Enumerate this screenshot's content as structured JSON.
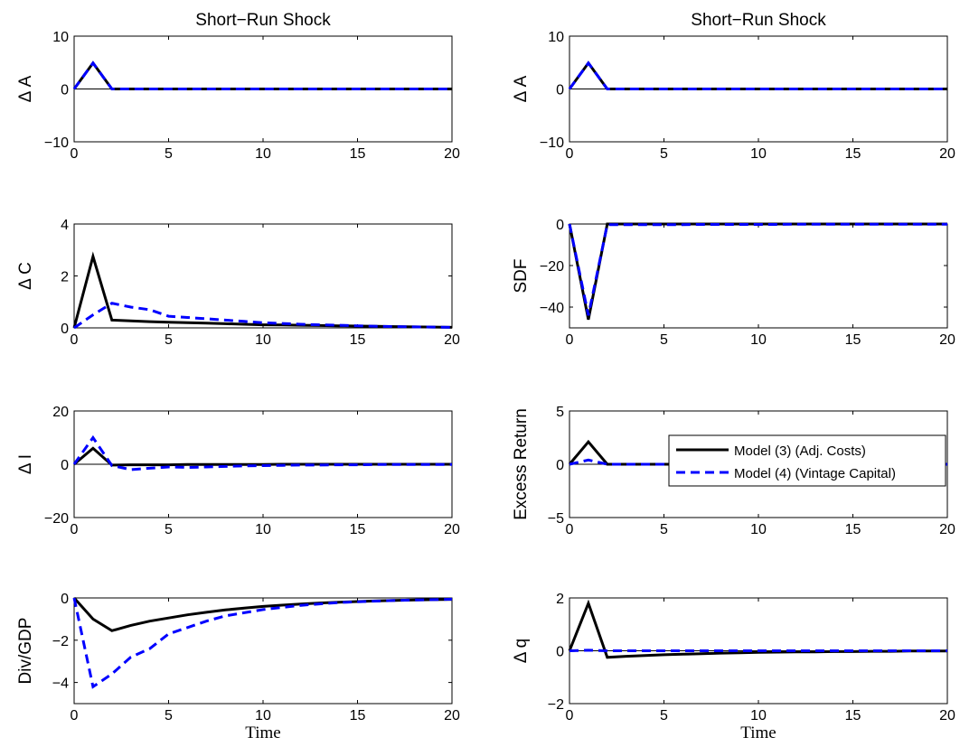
{
  "chart_data": [
    {
      "type": "line",
      "title": "Short−Run Shock",
      "ylabel": "Δ A",
      "xlabel": "",
      "xlim": [
        0,
        20
      ],
      "ylim": [
        -10,
        10
      ],
      "xticks": [
        0,
        5,
        10,
        15,
        20
      ],
      "yticks": [
        -10,
        0,
        10
      ],
      "xtick_labels": [
        "0",
        "5",
        "10",
        "15",
        "20"
      ],
      "ytick_labels": [
        "−10",
        "0",
        "10"
      ],
      "zero_line": true,
      "x": [
        0,
        1,
        2,
        3,
        4,
        5,
        6,
        7,
        8,
        9,
        10,
        11,
        12,
        13,
        14,
        15,
        16,
        17,
        18,
        19,
        20
      ],
      "series": [
        {
          "values": [
            0,
            4.9,
            0,
            0,
            0,
            0,
            0,
            0,
            0,
            0,
            0,
            0,
            0,
            0,
            0,
            0,
            0,
            0,
            0,
            0,
            0
          ],
          "color": "#000000",
          "dash": "solid"
        },
        {
          "values": [
            0,
            4.9,
            0,
            0,
            0,
            0,
            0,
            0,
            0,
            0,
            0,
            0,
            0,
            0,
            0,
            0,
            0,
            0,
            0,
            0,
            0
          ],
          "color": "#0000ff",
          "dash": "dashed"
        }
      ]
    },
    {
      "type": "line",
      "title": "Short−Run Shock",
      "ylabel": "Δ A",
      "xlabel": "",
      "xlim": [
        0,
        20
      ],
      "ylim": [
        -10,
        10
      ],
      "xticks": [
        0,
        5,
        10,
        15,
        20
      ],
      "yticks": [
        -10,
        0,
        10
      ],
      "xtick_labels": [
        "0",
        "5",
        "10",
        "15",
        "20"
      ],
      "ytick_labels": [
        "−10",
        "0",
        "10"
      ],
      "zero_line": true,
      "x": [
        0,
        1,
        2,
        3,
        4,
        5,
        6,
        7,
        8,
        9,
        10,
        11,
        12,
        13,
        14,
        15,
        16,
        17,
        18,
        19,
        20
      ],
      "series": [
        {
          "values": [
            0,
            4.9,
            0,
            0,
            0,
            0,
            0,
            0,
            0,
            0,
            0,
            0,
            0,
            0,
            0,
            0,
            0,
            0,
            0,
            0,
            0
          ],
          "color": "#000000",
          "dash": "solid"
        },
        {
          "values": [
            0,
            4.9,
            0,
            0,
            0,
            0,
            0,
            0,
            0,
            0,
            0,
            0,
            0,
            0,
            0,
            0,
            0,
            0,
            0,
            0,
            0
          ],
          "color": "#0000ff",
          "dash": "dashed"
        }
      ]
    },
    {
      "type": "line",
      "title": "",
      "ylabel": "Δ C",
      "xlabel": "",
      "xlim": [
        0,
        20
      ],
      "ylim": [
        0,
        4
      ],
      "xticks": [
        0,
        5,
        10,
        15,
        20
      ],
      "yticks": [
        0,
        2,
        4
      ],
      "xtick_labels": [
        "0",
        "5",
        "10",
        "15",
        "20"
      ],
      "ytick_labels": [
        "0",
        "2",
        "4"
      ],
      "zero_line": false,
      "x": [
        0,
        1,
        2,
        3,
        4,
        5,
        6,
        7,
        8,
        9,
        10,
        11,
        12,
        13,
        14,
        15,
        16,
        17,
        18,
        19,
        20
      ],
      "series": [
        {
          "values": [
            0,
            2.75,
            0.3,
            0.27,
            0.24,
            0.22,
            0.2,
            0.18,
            0.16,
            0.14,
            0.12,
            0.11,
            0.1,
            0.09,
            0.08,
            0.07,
            0.06,
            0.05,
            0.04,
            0.03,
            0.02
          ],
          "color": "#000000",
          "dash": "solid"
        },
        {
          "values": [
            0,
            0.5,
            0.95,
            0.8,
            0.7,
            0.45,
            0.4,
            0.35,
            0.3,
            0.25,
            0.2,
            0.17,
            0.14,
            0.12,
            0.1,
            0.08,
            0.06,
            0.05,
            0.04,
            0.03,
            0.02
          ],
          "color": "#0000ff",
          "dash": "dashed"
        }
      ]
    },
    {
      "type": "line",
      "title": "",
      "ylabel": "SDF",
      "xlabel": "",
      "xlim": [
        0,
        20
      ],
      "ylim": [
        -50,
        0
      ],
      "xticks": [
        0,
        5,
        10,
        15,
        20
      ],
      "yticks": [
        -40,
        -20,
        0
      ],
      "xtick_labels": [
        "0",
        "5",
        "10",
        "15",
        "20"
      ],
      "ytick_labels": [
        "−40",
        "−20",
        "0"
      ],
      "zero_line": false,
      "x": [
        0,
        1,
        2,
        3,
        4,
        5,
        6,
        7,
        8,
        9,
        10,
        11,
        12,
        13,
        14,
        15,
        16,
        17,
        18,
        19,
        20
      ],
      "series": [
        {
          "values": [
            0,
            -46,
            0,
            0,
            0,
            0,
            0,
            0,
            0,
            0,
            0,
            0,
            0,
            0,
            0,
            0,
            0,
            0,
            0,
            0,
            0
          ],
          "color": "#000000",
          "dash": "solid"
        },
        {
          "values": [
            0,
            -44,
            -0.3,
            -0.3,
            -0.3,
            -0.3,
            -0.3,
            -0.2,
            -0.2,
            -0.2,
            -0.2,
            -0.2,
            -0.1,
            -0.1,
            -0.1,
            -0.1,
            -0.1,
            -0.1,
            -0.1,
            -0.1,
            -0.1
          ],
          "color": "#0000ff",
          "dash": "dashed"
        }
      ]
    },
    {
      "type": "line",
      "title": "",
      "ylabel": "Δ I",
      "xlabel": "",
      "xlim": [
        0,
        20
      ],
      "ylim": [
        -20,
        20
      ],
      "xticks": [
        0,
        5,
        10,
        15,
        20
      ],
      "yticks": [
        -20,
        0,
        20
      ],
      "xtick_labels": [
        "0",
        "5",
        "10",
        "15",
        "20"
      ],
      "ytick_labels": [
        "−20",
        "0",
        "20"
      ],
      "zero_line": true,
      "x": [
        0,
        1,
        2,
        3,
        4,
        5,
        6,
        7,
        8,
        9,
        10,
        11,
        12,
        13,
        14,
        15,
        16,
        17,
        18,
        19,
        20
      ],
      "series": [
        {
          "values": [
            0,
            6,
            -0.3,
            -0.2,
            -0.2,
            -0.2,
            -0.1,
            -0.1,
            -0.1,
            -0.1,
            -0.1,
            0,
            0,
            0,
            0,
            0,
            0,
            0,
            0,
            0,
            0
          ],
          "color": "#000000",
          "dash": "solid"
        },
        {
          "values": [
            0,
            10,
            -0.5,
            -2,
            -1.5,
            -1,
            -1.2,
            -1,
            -0.8,
            -0.6,
            -0.5,
            -0.4,
            -0.3,
            -0.3,
            -0.2,
            -0.2,
            -0.1,
            -0.1,
            -0.1,
            -0.1,
            -0.1
          ],
          "color": "#0000ff",
          "dash": "dashed"
        }
      ]
    },
    {
      "type": "line",
      "title": "",
      "ylabel": "Excess Return",
      "xlabel": "",
      "xlim": [
        0,
        20
      ],
      "ylim": [
        -5,
        5
      ],
      "xticks": [
        0,
        5,
        10,
        15,
        20
      ],
      "yticks": [
        -5,
        0,
        5
      ],
      "xtick_labels": [
        "0",
        "5",
        "10",
        "15",
        "20"
      ],
      "ytick_labels": [
        "−5",
        "0",
        "5"
      ],
      "zero_line": true,
      "legend": {
        "placement": "right",
        "entries": [
          "Model (3) (Adj. Costs)",
          "Model (4) (Vintage Capital)"
        ]
      },
      "x": [
        0,
        1,
        2,
        3,
        4,
        5,
        6,
        7,
        8,
        9,
        10,
        11,
        12,
        13,
        14,
        15,
        16,
        17,
        18,
        19,
        20
      ],
      "series": [
        {
          "name": "Model (3) (Adj. Costs)",
          "values": [
            0,
            2.1,
            0,
            0,
            0,
            0,
            0,
            0,
            0,
            0,
            0,
            0,
            0,
            0,
            0,
            0,
            0,
            0,
            0,
            0,
            0
          ],
          "color": "#000000",
          "dash": "solid"
        },
        {
          "name": "Model (4) (Vintage Capital)",
          "values": [
            0,
            0.4,
            0,
            0,
            0,
            0,
            0,
            0,
            0,
            0,
            0,
            0,
            0,
            0,
            0,
            0,
            0,
            0,
            0,
            0,
            0
          ],
          "color": "#0000ff",
          "dash": "dashed"
        }
      ]
    },
    {
      "type": "line",
      "title": "",
      "ylabel": "Div/GDP",
      "xlabel": "Time",
      "xlim": [
        0,
        20
      ],
      "ylim": [
        -5,
        0
      ],
      "xticks": [
        0,
        5,
        10,
        15,
        20
      ],
      "yticks": [
        -4,
        -2,
        0
      ],
      "xtick_labels": [
        "0",
        "5",
        "10",
        "15",
        "20"
      ],
      "ytick_labels": [
        "−4",
        "−2",
        "0"
      ],
      "zero_line": false,
      "x": [
        0,
        1,
        2,
        3,
        4,
        5,
        6,
        7,
        8,
        9,
        10,
        11,
        12,
        13,
        14,
        15,
        16,
        17,
        18,
        19,
        20
      ],
      "series": [
        {
          "values": [
            0,
            -1.0,
            -1.55,
            -1.3,
            -1.1,
            -0.95,
            -0.8,
            -0.68,
            -0.57,
            -0.48,
            -0.4,
            -0.34,
            -0.29,
            -0.24,
            -0.2,
            -0.17,
            -0.14,
            -0.12,
            -0.1,
            -0.08,
            -0.07
          ],
          "color": "#000000",
          "dash": "solid"
        },
        {
          "values": [
            0,
            -4.2,
            -3.6,
            -2.8,
            -2.4,
            -1.7,
            -1.4,
            -1.1,
            -0.85,
            -0.7,
            -0.55,
            -0.45,
            -0.35,
            -0.28,
            -0.22,
            -0.18,
            -0.15,
            -0.12,
            -0.1,
            -0.08,
            -0.06
          ],
          "color": "#0000ff",
          "dash": "dashed"
        }
      ]
    },
    {
      "type": "line",
      "title": "",
      "ylabel": "Δ q",
      "xlabel": "Time",
      "xlim": [
        0,
        20
      ],
      "ylim": [
        -2,
        2
      ],
      "xticks": [
        0,
        5,
        10,
        15,
        20
      ],
      "yticks": [
        -2,
        0,
        2
      ],
      "xtick_labels": [
        "0",
        "5",
        "10",
        "15",
        "20"
      ],
      "ytick_labels": [
        "−2",
        "0",
        "2"
      ],
      "zero_line": true,
      "x": [
        0,
        1,
        2,
        3,
        4,
        5,
        6,
        7,
        8,
        9,
        10,
        11,
        12,
        13,
        14,
        15,
        16,
        17,
        18,
        19,
        20
      ],
      "series": [
        {
          "values": [
            0,
            1.8,
            -0.25,
            -0.21,
            -0.18,
            -0.15,
            -0.13,
            -0.11,
            -0.09,
            -0.08,
            -0.06,
            -0.05,
            -0.04,
            -0.04,
            -0.03,
            -0.03,
            -0.02,
            -0.02,
            -0.01,
            -0.01,
            -0.01
          ],
          "color": "#000000",
          "dash": "solid"
        },
        {
          "values": [
            0,
            0.02,
            0,
            0,
            0,
            0,
            0,
            0,
            0,
            0,
            0,
            0,
            0,
            0,
            0,
            0,
            0,
            0,
            0,
            0,
            0
          ],
          "color": "#0000ff",
          "dash": "dashed"
        }
      ]
    }
  ]
}
